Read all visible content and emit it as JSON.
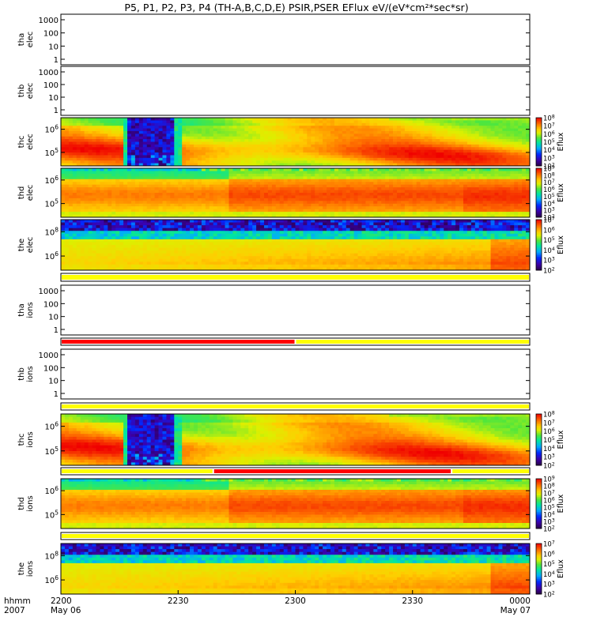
{
  "chart_data": {
    "type": "heatmap",
    "title": "P5, P1, P2, P3, P4 (TH-A,B,C,D,E) PSIR,PSER EFlux eV/(eV*cm²*sec*sr)",
    "xaxis": {
      "label_line1": "hhmm",
      "label_line2": "2007",
      "range_minutes": [
        0,
        120
      ],
      "ticks": [
        {
          "label": "2200",
          "date": "May 06",
          "t": 0
        },
        {
          "label": "2230",
          "date": "",
          "t": 30
        },
        {
          "label": "2300",
          "date": "",
          "t": 60
        },
        {
          "label": "2330",
          "date": "",
          "t": 90
        },
        {
          "label": "0000",
          "date": "May 07",
          "t": 120
        }
      ]
    },
    "colorbar_label": "Eflux",
    "strips": [
      {
        "name": "mode-strip-tha-ions",
        "segments": [
          {
            "from": 0,
            "to": 120,
            "color": "#ffff00"
          }
        ]
      },
      {
        "name": "mode-strip-thb-ions",
        "segments": [
          {
            "from": 0,
            "to": 60,
            "color": "#ff0000"
          },
          {
            "from": 60,
            "to": 120,
            "color": "#ffff00"
          }
        ]
      },
      {
        "name": "mode-strip-thc-ions",
        "segments": [
          {
            "from": 0,
            "to": 120,
            "color": "#ffff00"
          }
        ]
      },
      {
        "name": "mode-strip-thd-ions",
        "segments": [
          {
            "from": 0,
            "to": 39,
            "color": "#ffff00"
          },
          {
            "from": 39,
            "to": 100,
            "color": "#ff0000"
          },
          {
            "from": 100,
            "to": 120,
            "color": "#ffff00"
          }
        ]
      },
      {
        "name": "mode-strip-the-ions",
        "segments": [
          {
            "from": 0,
            "to": 120,
            "color": "#ffff00"
          }
        ]
      }
    ],
    "panels": [
      {
        "name": "tha-elec",
        "ylabel_line1": "tha",
        "ylabel_line2": "elec",
        "empty": true,
        "yticks": [
          "1",
          "10",
          "100",
          "1000"
        ],
        "colorbar": null
      },
      {
        "name": "thb-elec",
        "ylabel_line1": "thb",
        "ylabel_line2": "elec",
        "empty": true,
        "yticks": [
          "1",
          "10",
          "100",
          "1000"
        ],
        "colorbar": null
      },
      {
        "name": "thc-elec",
        "ylabel_line1": "thc",
        "ylabel_line2": "elec",
        "empty": false,
        "profile": "thc",
        "yticks": [
          "10^5",
          "10^6"
        ],
        "colorbar": {
          "min_exp": 2,
          "max_exp": 8
        }
      },
      {
        "name": "thd-elec",
        "ylabel_line1": "thd",
        "ylabel_line2": "elec",
        "empty": false,
        "profile": "thd",
        "yticks": [
          "10^5",
          "10^6"
        ],
        "colorbar": {
          "min_exp": 2,
          "max_exp": 9
        }
      },
      {
        "name": "the-elec",
        "ylabel_line1": "the",
        "ylabel_line2": "elec",
        "empty": false,
        "profile": "the",
        "yticks": [
          "10^6",
          "10^8"
        ],
        "colorbar": {
          "min_exp": 2,
          "max_exp": 7
        }
      },
      {
        "name": "tha-ions",
        "ylabel_line1": "tha",
        "ylabel_line2": "ions",
        "empty": true,
        "yticks": [
          "1",
          "10",
          "100",
          "1000"
        ],
        "colorbar": null
      },
      {
        "name": "thb-ions",
        "ylabel_line1": "thb",
        "ylabel_line2": "ions",
        "empty": true,
        "yticks": [
          "1",
          "10",
          "100",
          "1000"
        ],
        "colorbar": null
      },
      {
        "name": "thc-ions",
        "ylabel_line1": "thc",
        "ylabel_line2": "ions",
        "empty": false,
        "profile": "thc",
        "yticks": [
          "10^5",
          "10^6"
        ],
        "colorbar": {
          "min_exp": 2,
          "max_exp": 8
        }
      },
      {
        "name": "thd-ions",
        "ylabel_line1": "thd",
        "ylabel_line2": "ions",
        "empty": false,
        "profile": "thd",
        "yticks": [
          "10^5",
          "10^6"
        ],
        "colorbar": {
          "min_exp": 2,
          "max_exp": 9
        }
      },
      {
        "name": "the-ions",
        "ylabel_line1": "the",
        "ylabel_line2": "ions",
        "empty": false,
        "profile": "the",
        "yticks": [
          "10^6",
          "10^8"
        ],
        "colorbar": {
          "min_exp": 2,
          "max_exp": 7
        }
      }
    ]
  }
}
